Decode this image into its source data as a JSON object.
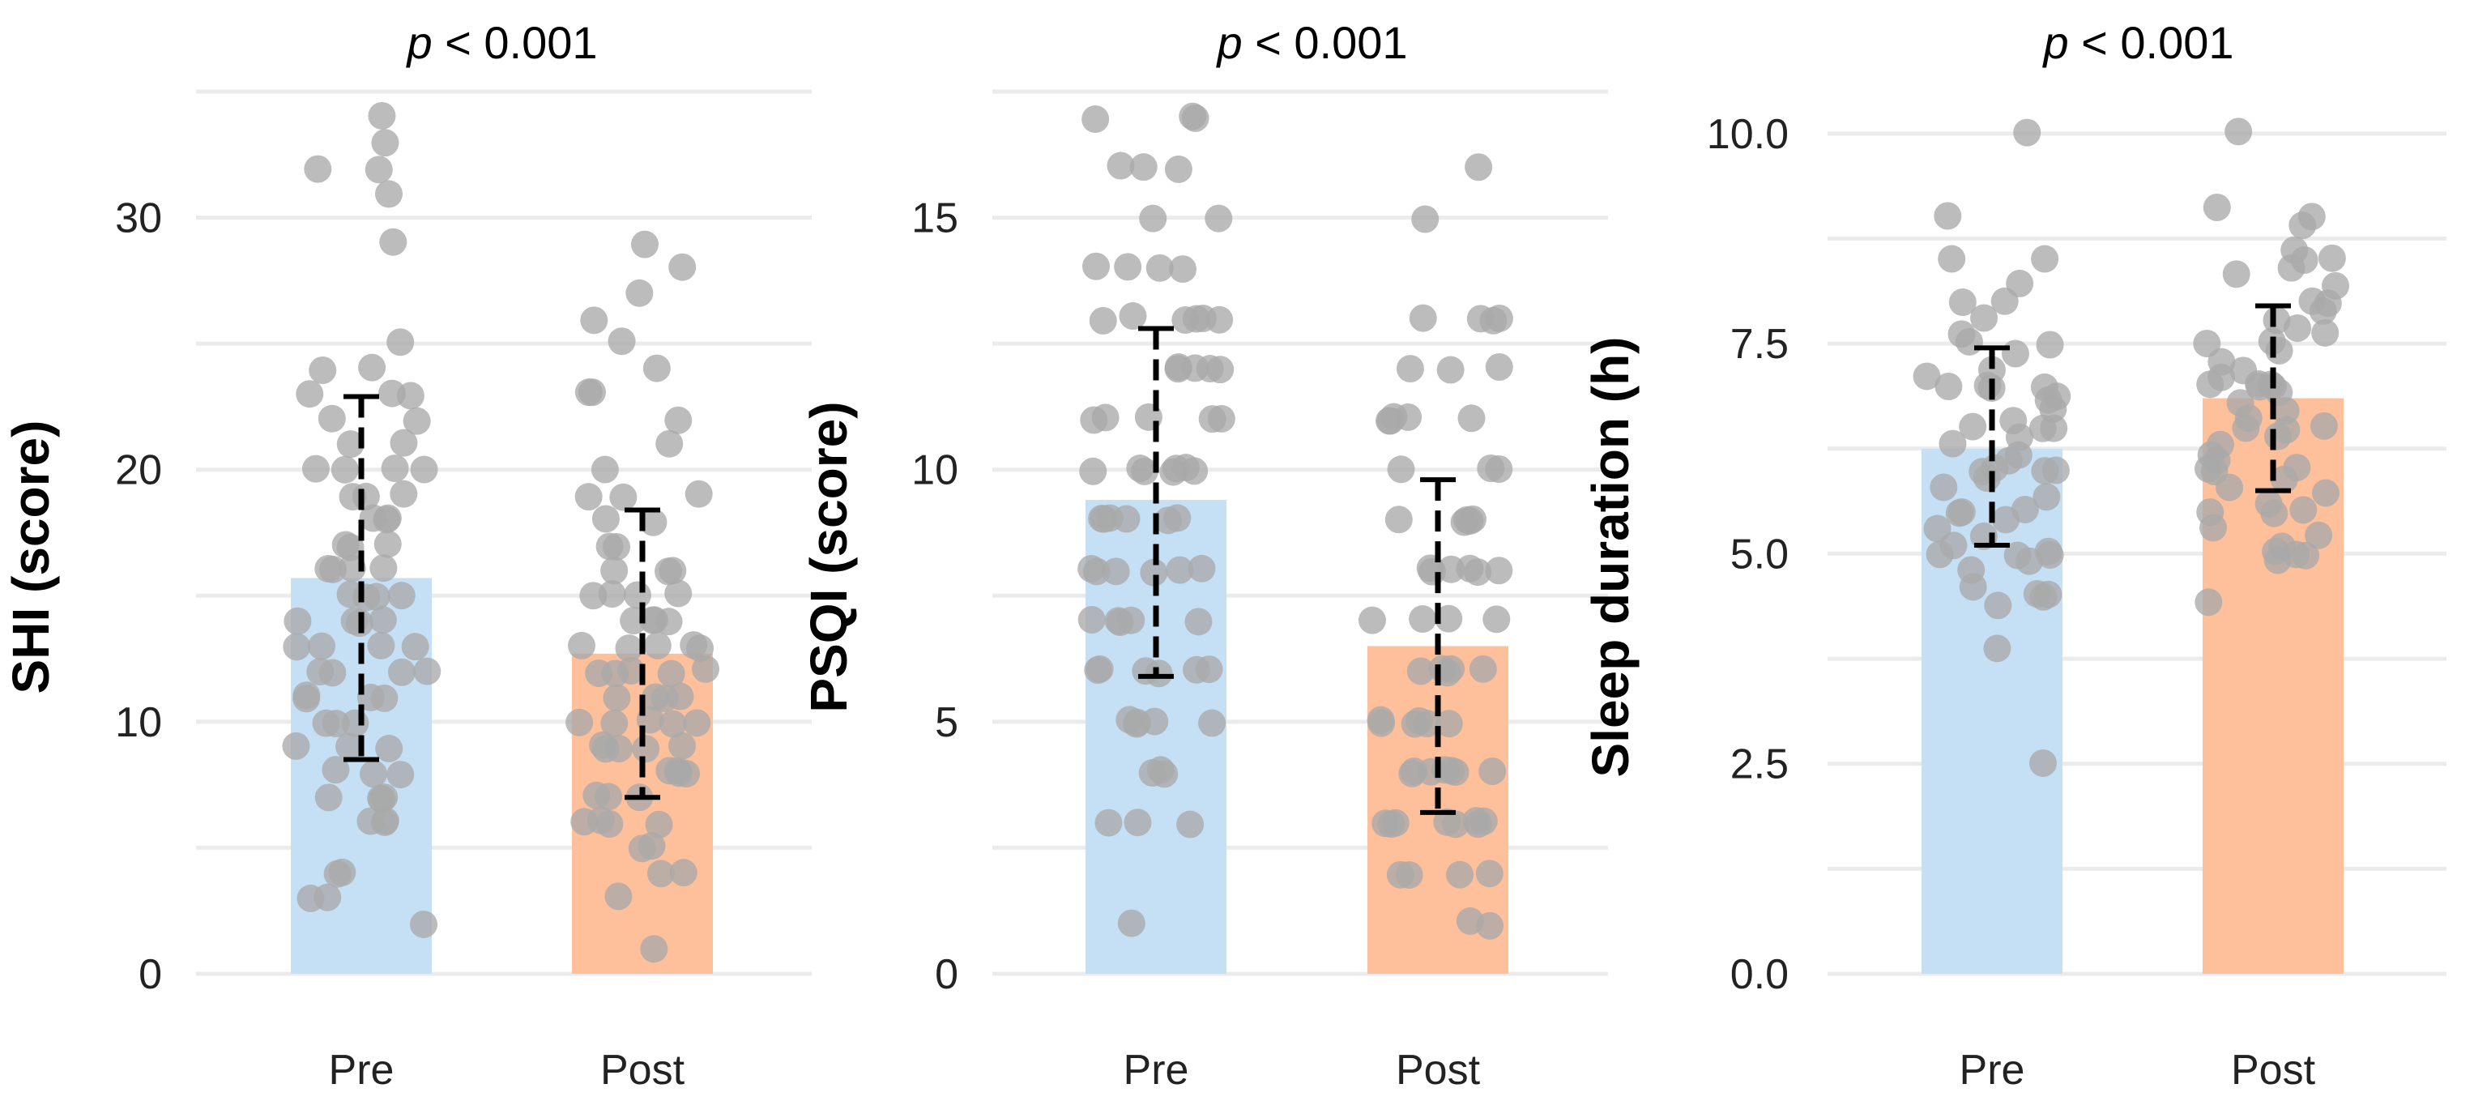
{
  "chart_data": [
    {
      "type": "bar",
      "title_p": "p",
      "title_rest": " < 0.001",
      "ylabel": "SHI (score)",
      "categories": [
        "Pre",
        "Post"
      ],
      "values": [
        15.7,
        12.7
      ],
      "error_low": [
        8.5,
        7.0
      ],
      "error_high": [
        22.9,
        18.4
      ],
      "ylim": [
        0,
        35
      ],
      "yticks": [
        0,
        10,
        20,
        30
      ],
      "ytick_labels": [
        "0",
        "10",
        "20",
        "30"
      ],
      "grid_minor": [
        5,
        15,
        25,
        35
      ],
      "colors": [
        "#c5e0f4",
        "#fdc09a"
      ],
      "point_color": "#a9a9a9",
      "points": [
        [
          34,
          32,
          33,
          32,
          31,
          29,
          25,
          24,
          24,
          23,
          23,
          23,
          22,
          22,
          21,
          21,
          20,
          20,
          20,
          20,
          19,
          19,
          19,
          18,
          18,
          18,
          17,
          17,
          17,
          16,
          16,
          16,
          16,
          15,
          15,
          15,
          15,
          14,
          14,
          14,
          14,
          13,
          13,
          13,
          13,
          12,
          12,
          12,
          12,
          11,
          11,
          11,
          11,
          10,
          10,
          10,
          9,
          9,
          9,
          8,
          8,
          8,
          7,
          7,
          7,
          7,
          6,
          6,
          6,
          4,
          4,
          3,
          3,
          2
        ],
        [
          29,
          28,
          27,
          26,
          25,
          24,
          23,
          23,
          22,
          21,
          20,
          19,
          19,
          19,
          18,
          18,
          17,
          17,
          16,
          16,
          16,
          15,
          15,
          15,
          15,
          14,
          14,
          14,
          14,
          13,
          13,
          13,
          13,
          13,
          12,
          12,
          12,
          12,
          12,
          11,
          11,
          11,
          11,
          10,
          10,
          10,
          10,
          10,
          9,
          9,
          9,
          9,
          9,
          8,
          8,
          8,
          8,
          7,
          7,
          7,
          6,
          6,
          6,
          6,
          5,
          5,
          4,
          4,
          3,
          1
        ]
      ]
    },
    {
      "type": "bar",
      "title_p": "p",
      "title_rest": " < 0.001",
      "ylabel": "PSQI (score)",
      "categories": [
        "Pre",
        "Post"
      ],
      "values": [
        9.4,
        6.5
      ],
      "error_low": [
        5.9,
        3.2
      ],
      "error_high": [
        12.8,
        9.8
      ],
      "ylim": [
        0,
        17.5
      ],
      "yticks": [
        0,
        5,
        10,
        15
      ],
      "ytick_labels": [
        "0",
        "5",
        "10",
        "15"
      ],
      "grid_minor": [
        2.5,
        7.5,
        12.5,
        17.5
      ],
      "colors": [
        "#c5e0f4",
        "#fdc09a"
      ],
      "point_color": "#a9a9a9",
      "points": [
        [
          17,
          17,
          17,
          16,
          16,
          16,
          15,
          15,
          14,
          14,
          14,
          14,
          13,
          13,
          13,
          13,
          13,
          13,
          12,
          12,
          12,
          12,
          12,
          11,
          11,
          11,
          11,
          11,
          10,
          10,
          10,
          10,
          10,
          10,
          10,
          9,
          9,
          9,
          9,
          9,
          9,
          8,
          8,
          8,
          8,
          8,
          8,
          7,
          7,
          7,
          7,
          7,
          6,
          6,
          6,
          6,
          6,
          6,
          5,
          5,
          5,
          5,
          5,
          4,
          4,
          4,
          3,
          3,
          3,
          1
        ],
        [
          16,
          15,
          13,
          13,
          13,
          13,
          12,
          12,
          12,
          11,
          11,
          11,
          11,
          11,
          10,
          10,
          10,
          9,
          9,
          9,
          9,
          9,
          8,
          8,
          8,
          8,
          8,
          8,
          7,
          7,
          7,
          7,
          6,
          6,
          6,
          6,
          6,
          5,
          5,
          5,
          5,
          5,
          5,
          4,
          4,
          4,
          4,
          4,
          4,
          4,
          3,
          3,
          3,
          3,
          3,
          3,
          3,
          3,
          2,
          2,
          2,
          2,
          1,
          1
        ]
      ]
    },
    {
      "type": "bar",
      "title_p": "p",
      "title_rest": " < 0.001",
      "ylabel": "Sleep duration (h)",
      "categories": [
        "Pre",
        "Post"
      ],
      "values": [
        6.25,
        6.85
      ],
      "error_low": [
        5.1,
        5.75
      ],
      "error_high": [
        7.45,
        7.95
      ],
      "ylim": [
        0,
        10.5
      ],
      "yticks": [
        0,
        2.5,
        5,
        7.5,
        10
      ],
      "ytick_labels": [
        "0.0",
        "2.5",
        "5.0",
        "7.5",
        "10.0"
      ],
      "grid_minor": [
        1.25,
        3.75,
        6.25,
        8.75
      ],
      "colors": [
        "#c5e0f4",
        "#fdc09a"
      ],
      "point_color": "#a9a9a9",
      "points": [
        [
          10.0,
          9.0,
          8.5,
          8.5,
          8.2,
          8.0,
          8.0,
          7.8,
          7.6,
          7.5,
          7.5,
          7.4,
          7.2,
          7.1,
          7.0,
          7.0,
          7.0,
          7.0,
          6.9,
          6.8,
          6.7,
          6.6,
          6.5,
          6.5,
          6.5,
          6.4,
          6.3,
          6.2,
          6.1,
          6.0,
          6.0,
          6.0,
          6.0,
          5.9,
          5.8,
          5.7,
          5.5,
          5.5,
          5.5,
          5.4,
          5.3,
          5.2,
          5.1,
          5.0,
          5.0,
          5.0,
          5.0,
          4.9,
          4.8,
          4.6,
          4.5,
          4.5,
          4.5,
          4.4,
          3.9,
          2.5
        ],
        [
          10.0,
          9.1,
          9.0,
          8.9,
          8.6,
          8.5,
          8.5,
          8.4,
          8.3,
          8.2,
          8.0,
          8.0,
          7.9,
          7.8,
          7.7,
          7.6,
          7.5,
          7.5,
          7.4,
          7.3,
          7.2,
          7.1,
          7.0,
          7.0,
          7.0,
          7.0,
          7.0,
          6.9,
          6.8,
          6.7,
          6.6,
          6.5,
          6.5,
          6.5,
          6.4,
          6.3,
          6.2,
          6.1,
          6.0,
          6.0,
          6.0,
          5.9,
          5.8,
          5.7,
          5.6,
          5.5,
          5.5,
          5.5,
          5.3,
          5.2,
          5.1,
          5.0,
          5.0,
          5.0,
          4.9,
          4.4
        ]
      ]
    }
  ]
}
